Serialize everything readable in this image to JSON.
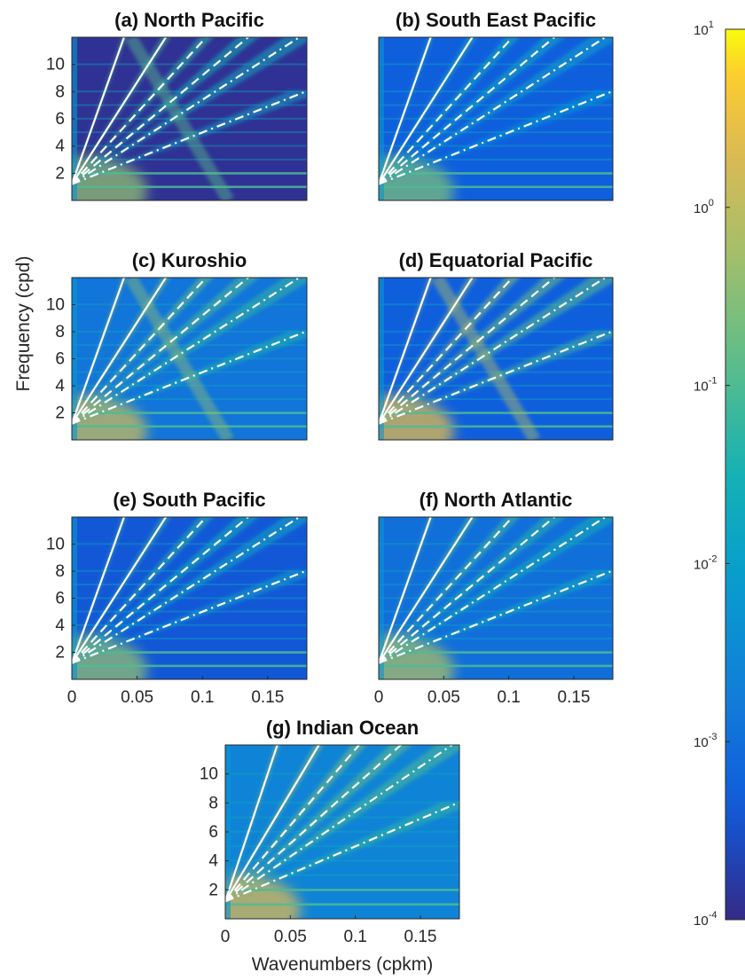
{
  "chart_data": {
    "type": "heatmap",
    "description_kind": "frequency-wavenumber spectra, 7 panels with shared log color scale",
    "colormap": "parula",
    "panels": [
      {
        "id": "a",
        "title": "(a) North Pacific",
        "style": "pacific"
      },
      {
        "id": "b",
        "title": "(b) South East Pacific",
        "style": "sep"
      },
      {
        "id": "c",
        "title": "(c) Kuroshio",
        "style": "kuroshio"
      },
      {
        "id": "d",
        "title": "(d) Equatorial Pacific",
        "style": "equatorial"
      },
      {
        "id": "e",
        "title": "(e) South Pacific",
        "style": "sp"
      },
      {
        "id": "f",
        "title": "(f) North Atlantic",
        "style": "na"
      },
      {
        "id": "g",
        "title": "(g) Indian Ocean",
        "style": "indian"
      }
    ],
    "x": {
      "label": "Wavenumbers (cpkm)",
      "lim": [
        0,
        0.18
      ],
      "ticks": [
        0,
        0.05,
        0.1,
        0.15
      ],
      "tick_labels": [
        "0",
        "0.05",
        "0.1",
        "0.15"
      ]
    },
    "y": {
      "label": "Frequency (cpd)",
      "lim": [
        0,
        12
      ],
      "ticks": [
        2,
        4,
        6,
        8,
        10
      ],
      "tick_labels": [
        "2",
        "4",
        "6",
        "8",
        "10"
      ]
    },
    "colorbar": {
      "scale": "log",
      "lim": [
        0.0001,
        10
      ],
      "ticks": [
        {
          "value": 10,
          "base": "10",
          "exp": "1"
        },
        {
          "value": 1,
          "base": "10",
          "exp": "0"
        },
        {
          "value": 0.1,
          "base": "10",
          "exp": "-1"
        },
        {
          "value": 0.01,
          "base": "10",
          "exp": "-2"
        },
        {
          "value": 0.001,
          "base": "10",
          "exp": "-3"
        },
        {
          "value": 0.0001,
          "base": "10",
          "exp": "-4"
        }
      ]
    },
    "dispersion_curves": {
      "solid": [
        {
          "slope": 270
        },
        {
          "slope": 150
        }
      ],
      "dashed": [
        {
          "slope": 105
        },
        {
          "slope": 80
        }
      ],
      "dashdot": [
        {
          "slope": 62
        },
        {
          "slope": 38
        }
      ]
    },
    "horizontal_bands": [
      1,
      2,
      3,
      4,
      5,
      6,
      7,
      8,
      10
    ]
  }
}
